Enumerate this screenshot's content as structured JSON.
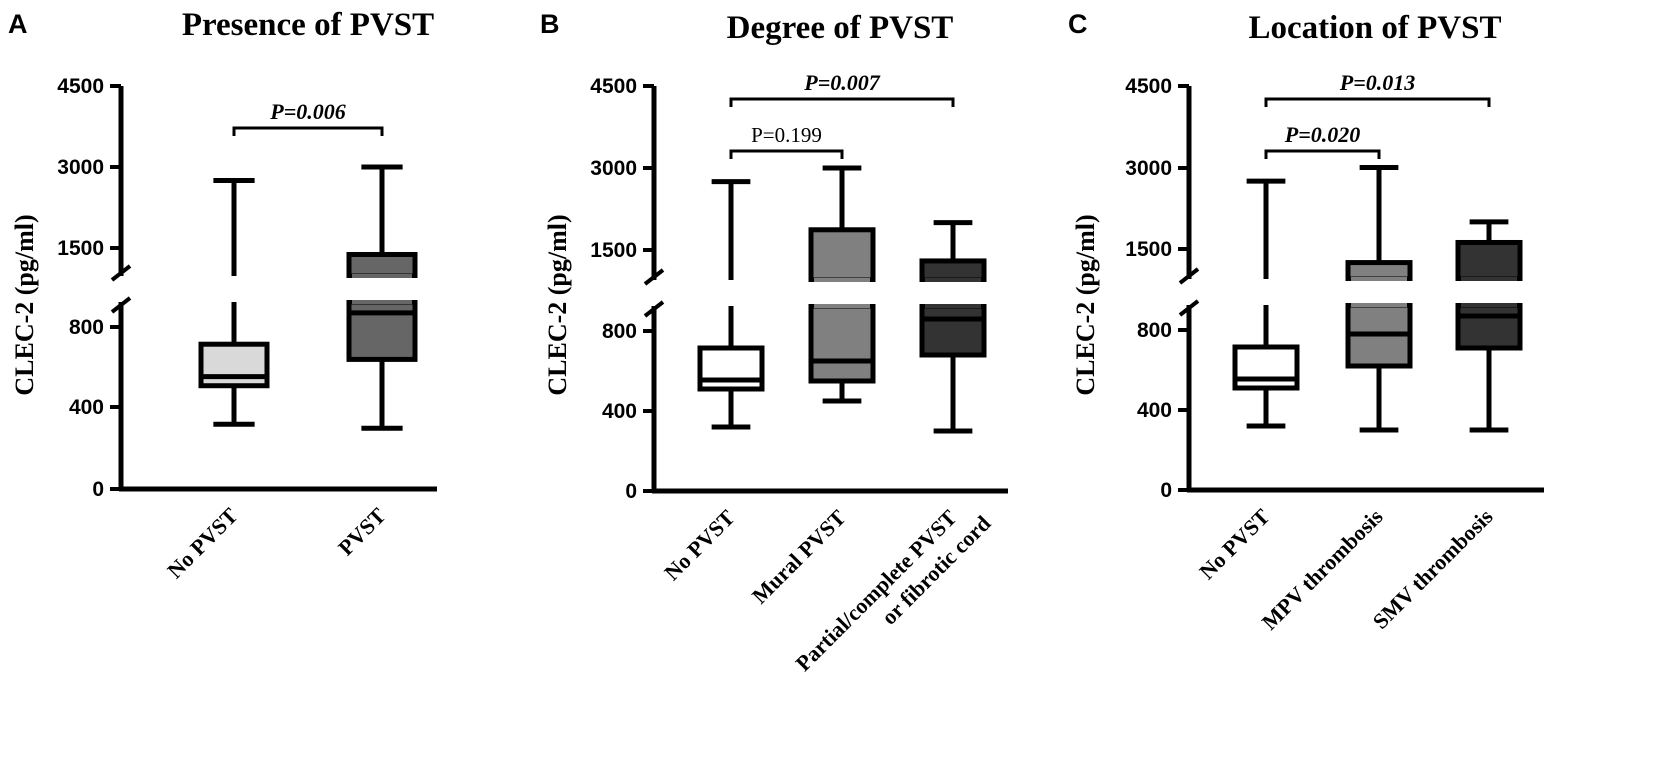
{
  "figure": {
    "y_axis_label": "CLEC-2 (pg/ml)",
    "y_ticks": {
      "lower": [
        "0",
        "400",
        "800"
      ],
      "upper": [
        "1500",
        "3000",
        "4500"
      ]
    }
  },
  "chart_data": [
    {
      "panel": "A",
      "title": "Presence of PVST",
      "type": "box",
      "ylabel": "CLEC-2 (pg/ml)",
      "y_axis": "broken",
      "lower_segment": [
        0,
        900
      ],
      "upper_segment": [
        900,
        4500
      ],
      "categories": [
        "No PVST",
        "PVST"
      ],
      "boxes": [
        {
          "name": "No PVST",
          "min": 320,
          "q1": 510,
          "median": 555,
          "q3": 715,
          "max": 2750,
          "fill": "#d9d9d9"
        },
        {
          "name": "PVST",
          "min": 300,
          "q1": 640,
          "median": 870,
          "q3": 1380,
          "max": 3000,
          "fill": "#666666"
        }
      ],
      "comparisons": [
        {
          "from": 0,
          "to": 1,
          "label": "P=0.006",
          "significant": true,
          "level": 4300
        }
      ]
    },
    {
      "panel": "B",
      "title": "Degree of PVST",
      "type": "box",
      "ylabel": "CLEC-2 (pg/ml)",
      "y_axis": "broken",
      "lower_segment": [
        0,
        900
      ],
      "upper_segment": [
        900,
        4500
      ],
      "categories": [
        "No PVST",
        "Mural PVST",
        "Partial/complete PVST\nor fibrotic cord"
      ],
      "boxes": [
        {
          "name": "No PVST",
          "min": 320,
          "q1": 510,
          "median": 555,
          "q3": 715,
          "max": 2750,
          "fill": "#ffffff"
        },
        {
          "name": "Mural PVST",
          "min": 450,
          "q1": 550,
          "median": 650,
          "q3": 1870,
          "max": 3000,
          "fill": "#808080"
        },
        {
          "name": "Partial/complete PVST or fibrotic cord",
          "min": 300,
          "q1": 680,
          "median": 860,
          "q3": 1300,
          "max": 2000,
          "fill": "#333333"
        }
      ],
      "comparisons": [
        {
          "from": 0,
          "to": 1,
          "label": "P=0.199",
          "significant": false,
          "level": 3300
        },
        {
          "from": 0,
          "to": 2,
          "label": "P=0.007",
          "significant": true,
          "level": 4300
        }
      ]
    },
    {
      "panel": "C",
      "title": "Location of PVST",
      "type": "box",
      "ylabel": "CLEC-2 (pg/ml)",
      "y_axis": "broken",
      "lower_segment": [
        0,
        900
      ],
      "upper_segment": [
        900,
        4500
      ],
      "categories": [
        "No PVST",
        "MPV thrombosis",
        "SMV thrombosis"
      ],
      "boxes": [
        {
          "name": "No PVST",
          "min": 320,
          "q1": 510,
          "median": 555,
          "q3": 715,
          "max": 2750,
          "fill": "#ffffff"
        },
        {
          "name": "MPV thrombosis",
          "min": 300,
          "q1": 620,
          "median": 780,
          "q3": 1250,
          "max": 3000,
          "fill": "#808080"
        },
        {
          "name": "SMV thrombosis",
          "min": 300,
          "q1": 710,
          "median": 870,
          "q3": 1620,
          "max": 2000,
          "fill": "#333333"
        }
      ],
      "comparisons": [
        {
          "from": 0,
          "to": 1,
          "label": "P=0.020",
          "significant": true,
          "level": 3300
        },
        {
          "from": 0,
          "to": 2,
          "label": "P=0.013",
          "significant": true,
          "level": 4300
        }
      ]
    }
  ]
}
